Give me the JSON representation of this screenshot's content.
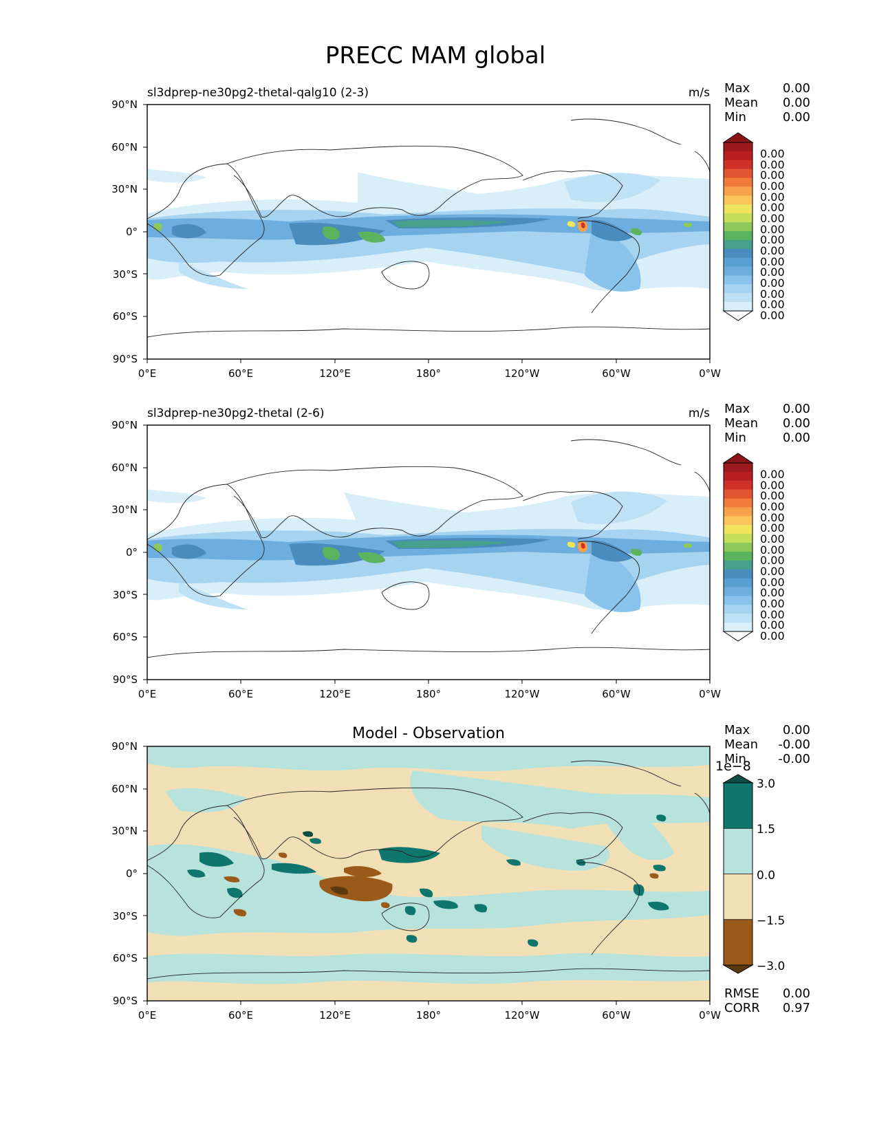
{
  "title": "PRECC MAM global",
  "tick_labels": {
    "lat": [
      "90°N",
      "60°N",
      "30°N",
      "0°",
      "30°S",
      "60°S",
      "90°S"
    ],
    "lon": [
      "0°E",
      "60°E",
      "120°E",
      "180°",
      "120°W",
      "60°W",
      "0°W"
    ]
  },
  "stat_labels": {
    "max": "Max",
    "mean": "Mean",
    "min": "Min",
    "rmse": "RMSE",
    "corr": "CORR"
  },
  "panels": [
    {
      "title_left": "sl3dprep-ne30pg2-thetal-qalg10 (2-3)",
      "title_center": "",
      "units": "m/s",
      "stats": {
        "max": "0.00",
        "mean": "0.00",
        "min": "0.00"
      },
      "colorbar_ticks": [
        "0.00",
        "0.00",
        "0.00",
        "0.00",
        "0.00",
        "0.00",
        "0.00",
        "0.00",
        "0.00",
        "0.00",
        "0.00",
        "0.00",
        "0.00",
        "0.00",
        "0.00",
        "0.00"
      ]
    },
    {
      "title_left": "sl3dprep-ne30pg2-thetal (2-6)",
      "title_center": "",
      "units": "m/s",
      "stats": {
        "max": "0.00",
        "mean": "0.00",
        "min": "0.00"
      },
      "colorbar_ticks": [
        "0.00",
        "0.00",
        "0.00",
        "0.00",
        "0.00",
        "0.00",
        "0.00",
        "0.00",
        "0.00",
        "0.00",
        "0.00",
        "0.00",
        "0.00",
        "0.00",
        "0.00",
        "0.00"
      ]
    },
    {
      "title_left": "",
      "title_center": "Model - Observation",
      "units": "",
      "stats": {
        "max": "0.00",
        "mean": "-0.00",
        "min": "-0.00"
      },
      "colorbar_offset": "1e−8",
      "colorbar_ticks": [
        "3.0",
        "1.5",
        "0.0",
        "−1.5",
        "−3.0"
      ],
      "metrics": {
        "rmse": "0.00",
        "corr": "0.97"
      }
    }
  ],
  "colors": {
    "precip_scale": [
      "#ffffff",
      "#d8eef9",
      "#bfe1f5",
      "#a6d3f0",
      "#89c2ea",
      "#6daedf",
      "#5a9fd2",
      "#4b8cbf",
      "#47a08b",
      "#5bb35e",
      "#8cc85a",
      "#c5df5c",
      "#eee45e",
      "#fbc55c",
      "#f7a24b",
      "#f07b3a",
      "#e35530",
      "#cf3028",
      "#b81e22",
      "#9c1a1e",
      "#8b1418"
    ],
    "diff_scale": [
      "#5b3a12",
      "#9a5a1a",
      "#f1dfb6",
      "#b7e3dc",
      "#0f766e",
      "#0d4b43"
    ]
  }
}
